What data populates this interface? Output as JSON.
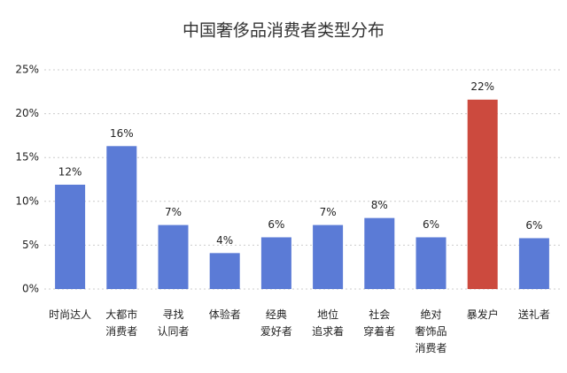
{
  "chart_data": {
    "type": "bar",
    "title": "中国奢侈品消费者类型分布",
    "categories": [
      "时尚达人",
      "大都市\n消费者",
      "寻找\n认同者",
      "体验者",
      "经典\n爱好者",
      "地位\n追求着",
      "社会\n穿着者",
      "绝对\n奢饰品\n消费者",
      "暴发户",
      "送礼者"
    ],
    "values": [
      11.9,
      16.3,
      7.3,
      4.1,
      5.9,
      7.3,
      8.1,
      5.9,
      21.6,
      5.8
    ],
    "value_labels": [
      "12%",
      "16%",
      "7%",
      "4%",
      "6%",
      "7%",
      "8%",
      "6%",
      "22%",
      "6%"
    ],
    "colors": [
      "#5b7bd6",
      "#5b7bd6",
      "#5b7bd6",
      "#5b7bd6",
      "#5b7bd6",
      "#5b7bd6",
      "#5b7bd6",
      "#5b7bd6",
      "#cc4a3e",
      "#5b7bd6"
    ],
    "ylim": [
      0,
      25
    ],
    "yticks": [
      {
        "value": 0,
        "label": "0%"
      },
      {
        "value": 5,
        "label": "5%"
      },
      {
        "value": 10,
        "label": "10%"
      },
      {
        "value": 15,
        "label": "15%"
      },
      {
        "value": 20,
        "label": "20%"
      },
      {
        "value": 25,
        "label": "25%"
      }
    ],
    "grid": true
  }
}
